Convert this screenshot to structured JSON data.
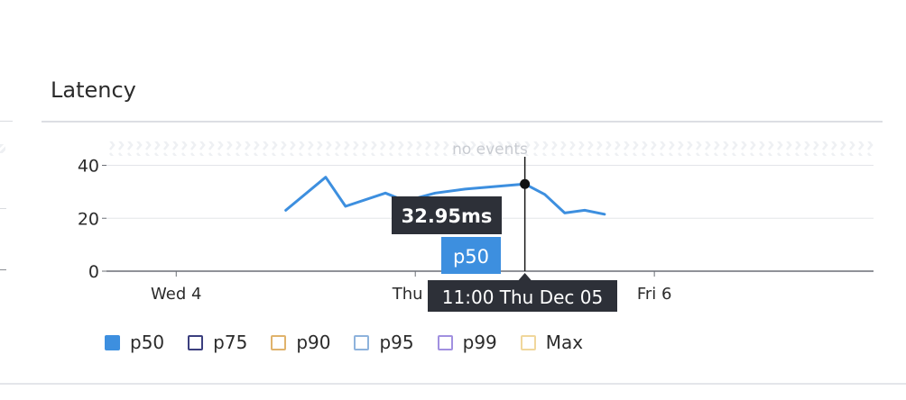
{
  "panel": {
    "title": "Latency",
    "no_events_label": "no events"
  },
  "tooltip": {
    "value": "32.95ms",
    "series": "p50",
    "time": "11:00 Thu Dec 05"
  },
  "legend": [
    {
      "label": "p50",
      "color": "#3d8fdf",
      "filled": true
    },
    {
      "label": "p75",
      "color": "#3b3f7e",
      "filled": false
    },
    {
      "label": "p90",
      "color": "#e0b36c",
      "filled": false
    },
    {
      "label": "p95",
      "color": "#8eb3dc",
      "filled": false
    },
    {
      "label": "p99",
      "color": "#a190e0",
      "filled": false
    },
    {
      "label": "Max",
      "color": "#f0d79c",
      "filled": false
    }
  ],
  "chart_data": {
    "type": "line",
    "title": "Latency",
    "ylabel": "",
    "xlabel": "",
    "ylim": [
      0,
      48
    ],
    "yticks": [
      0,
      20,
      40
    ],
    "grid": true,
    "x_ticks": [
      {
        "label": "Wed 4",
        "t": 0
      },
      {
        "label": "Thu 5",
        "t": 24
      },
      {
        "label": "Fri 6",
        "t": 48
      }
    ],
    "xlim": [
      -7,
      70
    ],
    "series": [
      {
        "name": "p50",
        "color": "#3d8fdf",
        "points": [
          {
            "t": 11,
            "y": 23
          },
          {
            "t": 15,
            "y": 35.5
          },
          {
            "t": 17,
            "y": 24.5
          },
          {
            "t": 21,
            "y": 29.5
          },
          {
            "t": 23,
            "y": 26.5
          },
          {
            "t": 26,
            "y": 29.5
          },
          {
            "t": 29,
            "y": 31
          },
          {
            "t": 35,
            "y": 32.95
          },
          {
            "t": 37,
            "y": 29
          },
          {
            "t": 39,
            "y": 22
          },
          {
            "t": 41,
            "y": 23
          },
          {
            "t": 43,
            "y": 21.5
          }
        ]
      }
    ],
    "hover": {
      "t": 35,
      "y": 32.95
    }
  }
}
